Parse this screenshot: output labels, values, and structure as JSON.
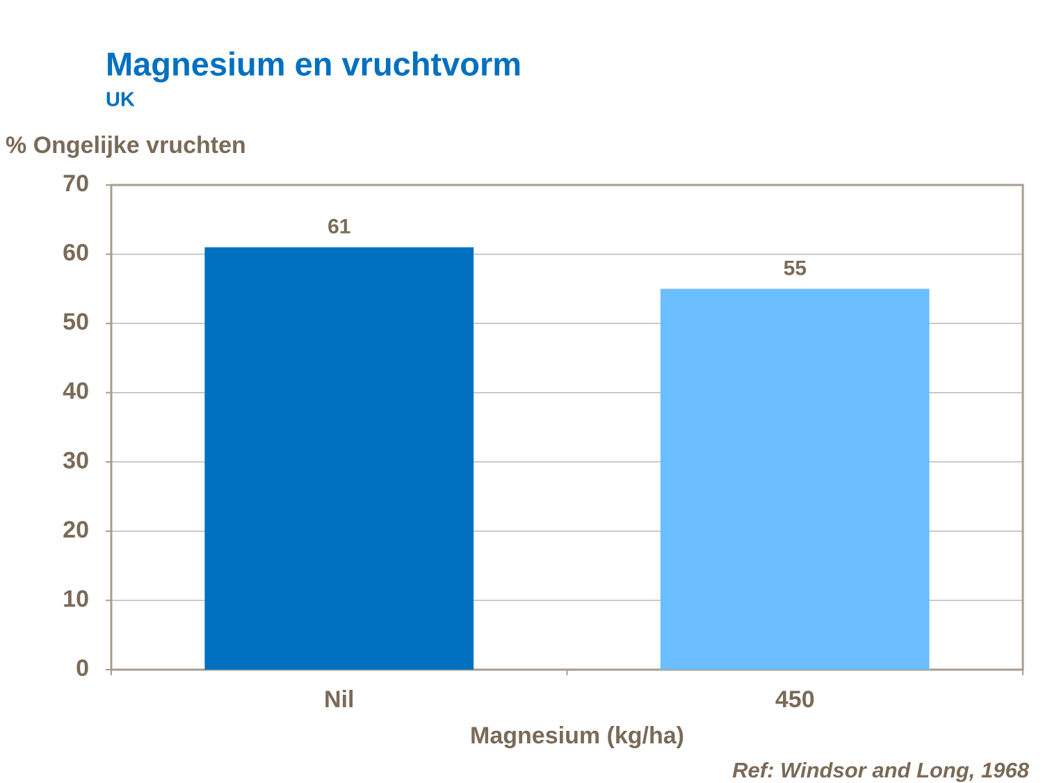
{
  "chart_data": {
    "type": "bar",
    "title": "Magnesium en vruchtvorm",
    "subtitle": "UK",
    "y_label": "% Ongelijke vruchten",
    "x_label": "Magnesium (kg/ha)",
    "note": "Ref: Windsor and Long, 1968",
    "categories": [
      "Nil",
      "450"
    ],
    "values": [
      61,
      55
    ],
    "colors": [
      "#0070c0",
      "#6bbeff"
    ],
    "ylim": [
      0,
      70
    ],
    "yticks": [
      0,
      10,
      20,
      30,
      40,
      50,
      60,
      70
    ],
    "grid": true
  }
}
